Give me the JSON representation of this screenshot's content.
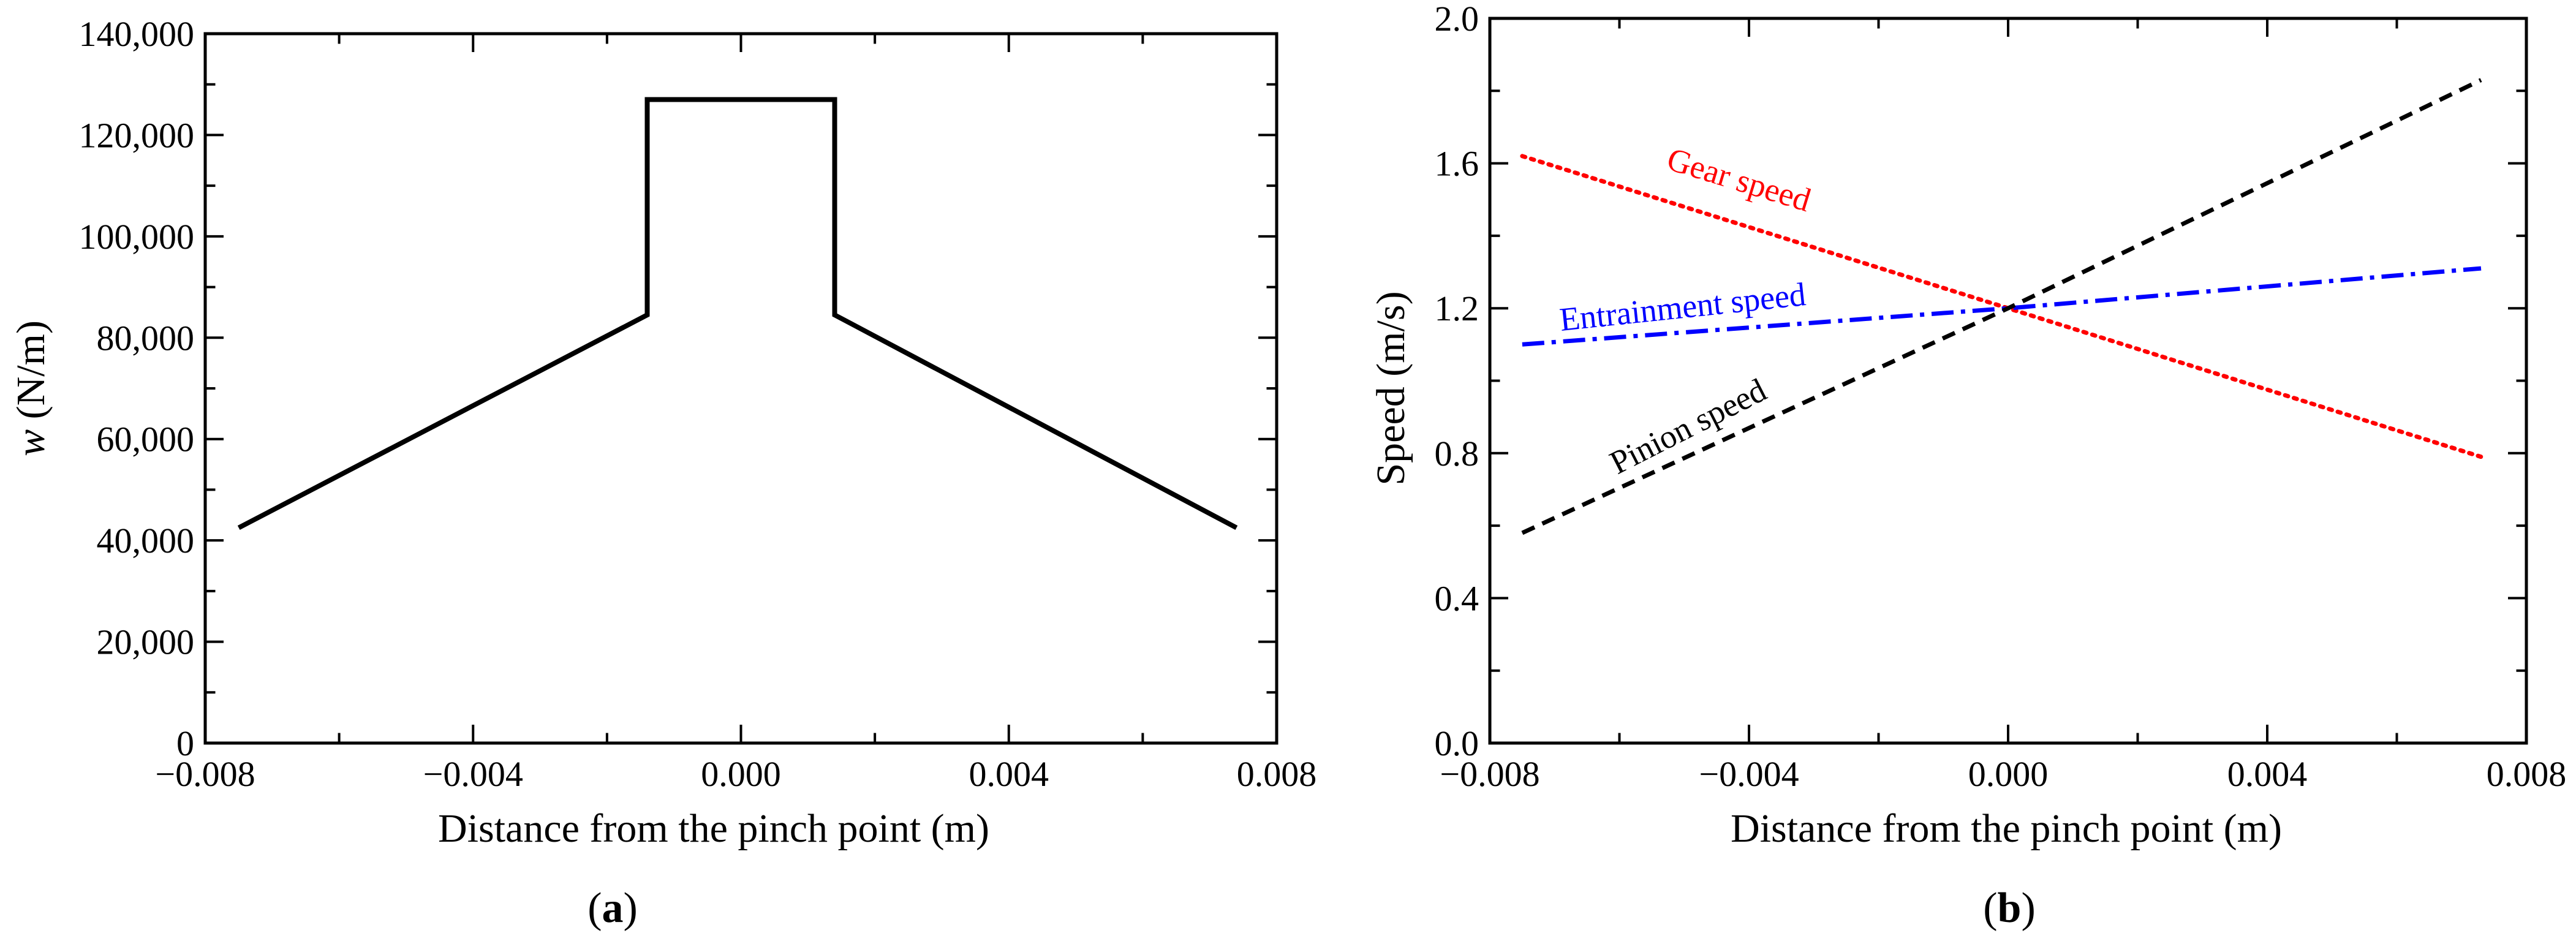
{
  "chart_data": [
    {
      "type": "line",
      "panel_label": "a",
      "xlabel": "Distance from the pinch point (m)",
      "ylabel_italic": "w",
      "ylabel_rest": " (N/m)",
      "xlim": [
        -0.008,
        0.008
      ],
      "ylim": [
        0,
        140000
      ],
      "xticks": [
        -0.008,
        -0.004,
        0.0,
        0.004,
        0.008
      ],
      "xtick_labels": [
        "−0.008",
        "−0.004",
        "0.000",
        "0.004",
        "0.008"
      ],
      "yticks": [
        0,
        20000,
        40000,
        60000,
        80000,
        100000,
        120000,
        140000
      ],
      "ytick_labels": [
        "0",
        "20,000",
        "40,000",
        "60,000",
        "80,000",
        "100,000",
        "120,000",
        "140,000"
      ],
      "series": [
        {
          "name": "load per unit length",
          "color": "#000000",
          "style": "solid",
          "x": [
            -0.0075,
            -0.0014,
            -0.0014,
            0.0014,
            0.0014,
            0.0074
          ],
          "y": [
            42500,
            84500,
            127000,
            127000,
            84500,
            42500
          ]
        }
      ]
    },
    {
      "type": "line",
      "panel_label": "b",
      "xlabel": "Distance from the pinch point (m)",
      "ylabel": "Speed (m/s)",
      "xlim": [
        -0.008,
        0.008
      ],
      "ylim": [
        0.0,
        2.0
      ],
      "xticks": [
        -0.008,
        -0.004,
        0.0,
        0.004,
        0.008
      ],
      "xtick_labels": [
        "−0.008",
        "−0.004",
        "0.000",
        "0.004",
        "0.008"
      ],
      "yticks": [
        0.0,
        0.4,
        0.8,
        1.2,
        1.6,
        2.0
      ],
      "ytick_labels": [
        "0.0",
        "0.4",
        "0.8",
        "1.2",
        "1.6",
        "2.0"
      ],
      "series": [
        {
          "name": "Gear speed",
          "color": "#ff0000",
          "style": "dotted",
          "x": [
            -0.0075,
            0.0,
            0.0073
          ],
          "y": [
            1.62,
            1.2,
            0.79
          ]
        },
        {
          "name": "Entrainment speed",
          "color": "#0000ff",
          "style": "dashdot",
          "x": [
            -0.0075,
            0.0,
            0.0073
          ],
          "y": [
            1.1,
            1.2,
            1.31
          ]
        },
        {
          "name": "Pinion speed",
          "color": "#000000",
          "style": "dashed",
          "x": [
            -0.0075,
            0.0,
            0.0073
          ],
          "y": [
            0.58,
            1.2,
            1.83
          ]
        }
      ]
    }
  ]
}
